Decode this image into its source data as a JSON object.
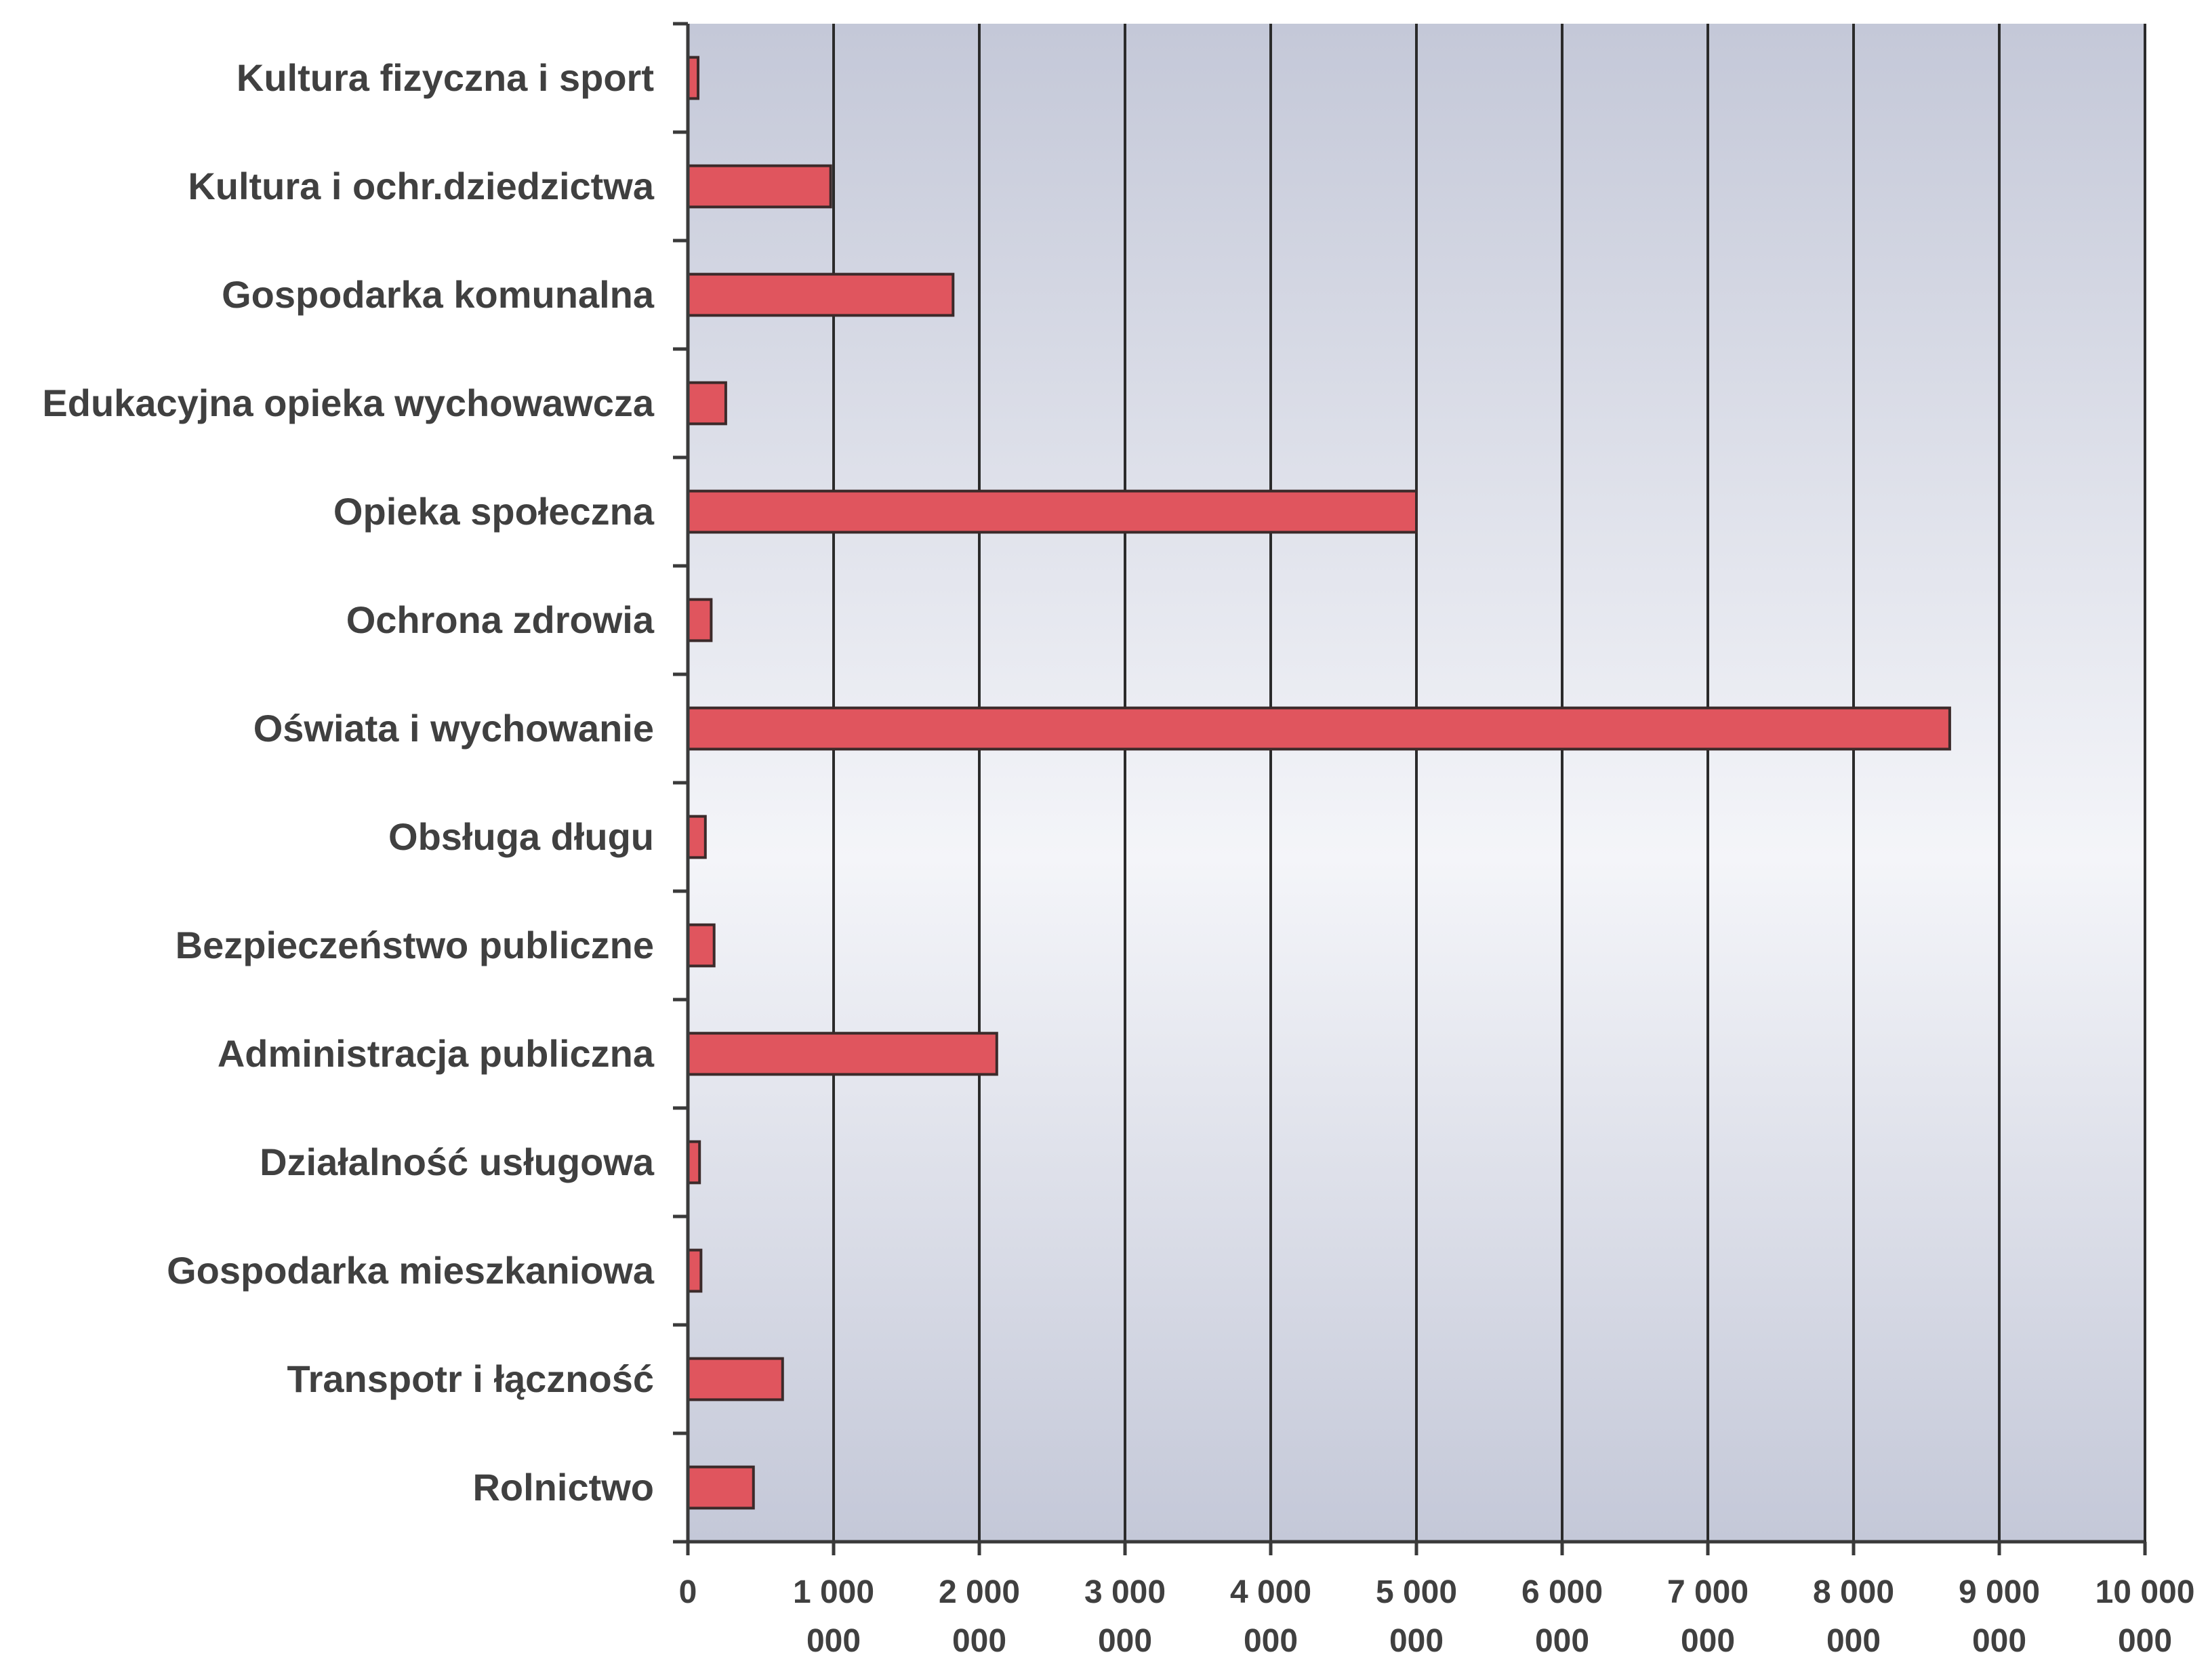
{
  "chart_data": {
    "type": "bar",
    "orientation": "horizontal",
    "categories": [
      "Kultura fizyczna i sport",
      "Kultura i ochr.dziedzictwa",
      "Gospodarka komunalna",
      "Edukacyjna opieka wychowawcza",
      "Opieka społeczna",
      "Ochrona zdrowia",
      "Oświata i wychowanie",
      "Obsługa długu",
      "Bezpieczeństwo publiczne",
      "Administracja publiczna",
      "Działalność usługowa",
      "Gospodarka mieszkaniowa",
      "Transpotr i łączność",
      "Rolnictwo"
    ],
    "values": [
      70000,
      980000,
      1820000,
      260000,
      5000000,
      160000,
      8660000,
      120000,
      180000,
      2120000,
      80000,
      90000,
      650000,
      450000
    ],
    "title": "",
    "xlabel": "",
    "ylabel": "",
    "xlim": [
      0,
      10000000
    ],
    "x_ticks": [
      0,
      1000000,
      2000000,
      3000000,
      4000000,
      5000000,
      6000000,
      7000000,
      8000000,
      9000000,
      10000000
    ],
    "x_tick_labels": [
      [
        "0"
      ],
      [
        "1 000",
        "000"
      ],
      [
        "2 000",
        "000"
      ],
      [
        "3 000",
        "000"
      ],
      [
        "4 000",
        "000"
      ],
      [
        "5 000",
        "000"
      ],
      [
        "6 000",
        "000"
      ],
      [
        "7 000",
        "000"
      ],
      [
        "8 000",
        "000"
      ],
      [
        "9 000",
        "000"
      ],
      [
        "10 000",
        "000"
      ]
    ],
    "grid": true,
    "legend": "none",
    "colors": {
      "bar": "#e0555e",
      "plot_background_light": "#f4f5f9",
      "plot_background_dark": "#c4c8d8",
      "text": "#404040"
    }
  }
}
